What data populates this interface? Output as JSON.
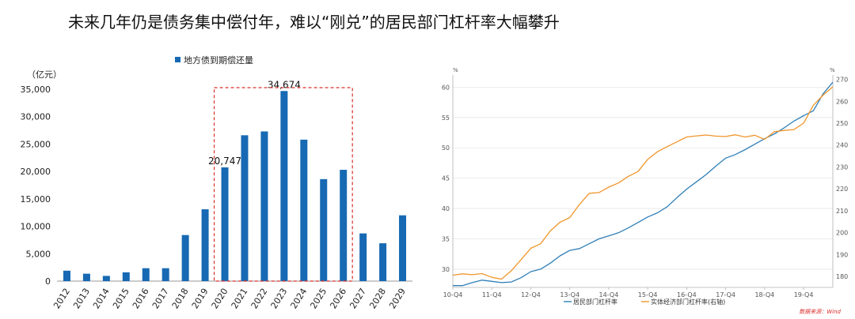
{
  "title": "未来几年仍是债务集中偿付年，难以“刚兑”的居民部门杠杆率大幅攀升",
  "source_note": "数据来源：Wind",
  "colors": {
    "bar": "#1769B3",
    "highlight_box": "#D9302C",
    "line_left": "#2F7FB8",
    "line_right": "#F0962C"
  },
  "chart_data": [
    {
      "type": "bar",
      "title": "",
      "legend": [
        "地方债到期偿还量"
      ],
      "legend_position": "top",
      "ylabel": "（亿元）",
      "xlabel": "",
      "ylim": [
        0,
        35000
      ],
      "yticks": [
        0,
        5000,
        10000,
        15000,
        20000,
        25000,
        30000,
        35000
      ],
      "ytick_labels": [
        "0",
        "5,000",
        "10,000",
        "15,000",
        "20,000",
        "25,000",
        "30,000",
        "35,000"
      ],
      "categories": [
        "2012",
        "2013",
        "2014",
        "2015",
        "2016",
        "2017",
        "2018",
        "2019",
        "2020",
        "2021",
        "2022",
        "2023",
        "2024",
        "2025",
        "2026",
        "2027",
        "2028",
        "2029"
      ],
      "series": [
        {
          "name": "地方债到期偿还量",
          "values": [
            1900,
            1350,
            950,
            1600,
            2350,
            2350,
            8400,
            13100,
            20747,
            26600,
            27300,
            34674,
            25800,
            18600,
            20300,
            8700,
            6900,
            12000
          ]
        }
      ],
      "data_labels": [
        {
          "category": "2020",
          "text": "20,747"
        },
        {
          "category": "2023",
          "text": "34,674"
        }
      ],
      "highlight_range": [
        "2020",
        "2026"
      ],
      "grid": false
    },
    {
      "type": "line",
      "title": "",
      "legend_position": "bottom",
      "y_left_unit": "%",
      "y_right_unit": "%",
      "ylim_left": [
        27,
        62
      ],
      "ylim_right": [
        175,
        272
      ],
      "yticks_left": [
        30,
        35,
        40,
        45,
        50,
        55,
        60
      ],
      "yticks_right": [
        180,
        190,
        200,
        210,
        220,
        230,
        240,
        250,
        260,
        270
      ],
      "x_tick_labels": [
        "10-Q4",
        "11-Q4",
        "12-Q4",
        "13-Q4",
        "14-Q4",
        "15-Q4",
        "16-Q4",
        "17-Q4",
        "18-Q4",
        "19-Q4"
      ],
      "x_tick_positions": [
        0,
        4,
        8,
        12,
        16,
        20,
        24,
        28,
        32,
        36
      ],
      "grid": "horizontal",
      "series": [
        {
          "name": "居民部门杠杆率",
          "axis": "left",
          "x": [
            0,
            1,
            2,
            3,
            4,
            5,
            6,
            7,
            8,
            9,
            10,
            11,
            12,
            13,
            14,
            15,
            16,
            17,
            18,
            19,
            20,
            21,
            22,
            23,
            24,
            25,
            26,
            27,
            28,
            29,
            30,
            31,
            32,
            33,
            34,
            35,
            36,
            37,
            38,
            39
          ],
          "values": [
            27.3,
            27.3,
            27.8,
            28.2,
            28.0,
            27.8,
            27.9,
            28.6,
            29.6,
            30.0,
            31.0,
            32.2,
            33.1,
            33.4,
            34.2,
            35.0,
            35.5,
            36.0,
            36.8,
            37.7,
            38.6,
            39.3,
            40.3,
            41.8,
            43.2,
            44.4,
            45.6,
            47.0,
            48.3,
            48.9,
            49.7,
            50.6,
            51.5,
            52.3,
            53.3,
            54.4,
            55.3,
            56.1,
            58.9,
            60.8
          ]
        },
        {
          "name": "实体经济部门杠杆率(右轴)",
          "axis": "right",
          "x": [
            0,
            1,
            2,
            3,
            4,
            5,
            6,
            7,
            8,
            9,
            10,
            11,
            12,
            13,
            14,
            15,
            16,
            17,
            18,
            19,
            20,
            21,
            22,
            23,
            24,
            25,
            26,
            27,
            28,
            29,
            30,
            31,
            32,
            33,
            34,
            35,
            36,
            37,
            38,
            39
          ],
          "values": [
            180.6,
            181.2,
            180.8,
            181.3,
            179.6,
            178.8,
            182.6,
            187.7,
            192.9,
            194.9,
            200.8,
            204.8,
            206.9,
            212.9,
            218.0,
            218.3,
            220.8,
            222.7,
            225.7,
            227.9,
            233.5,
            237.0,
            239.3,
            241.5,
            243.7,
            244.2,
            244.6,
            244.1,
            243.9,
            244.7,
            243.7,
            244.5,
            242.6,
            246.1,
            246.7,
            247.1,
            250.0,
            258.2,
            262.8,
            266.6
          ]
        }
      ]
    }
  ]
}
